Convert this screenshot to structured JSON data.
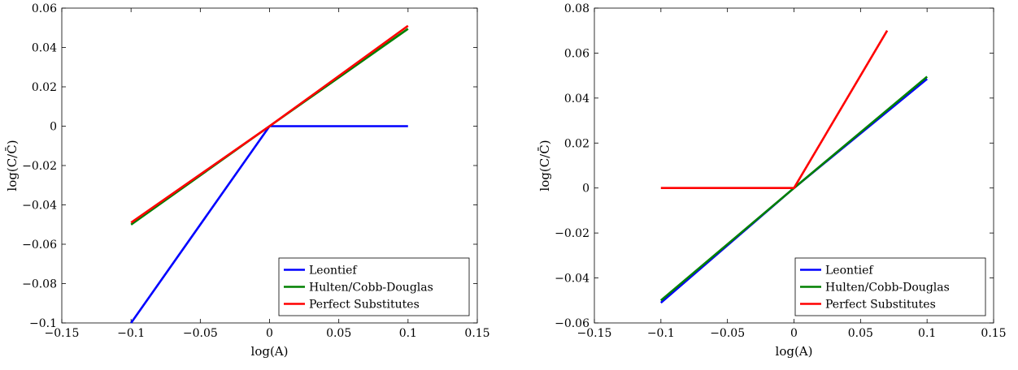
{
  "chart_data": [
    {
      "type": "line",
      "xlabel": "log(A)",
      "ylabel": "log(C/C̄)",
      "xlim": [
        -0.15,
        0.15
      ],
      "ylim": [
        -0.1,
        0.06
      ],
      "xticks": [
        "−0.15",
        "−0.1",
        "−0.05",
        "0",
        "0.05",
        "0.1",
        "0.15"
      ],
      "xtick_values": [
        -0.15,
        -0.1,
        -0.05,
        0,
        0.05,
        0.1,
        0.15
      ],
      "yticks": [
        "−0.1",
        "−0.08",
        "−0.06",
        "−0.04",
        "−0.02",
        "0",
        "0.02",
        "0.04",
        "0.06"
      ],
      "ytick_values": [
        -0.1,
        -0.08,
        -0.06,
        -0.04,
        -0.02,
        0,
        0.02,
        0.04,
        0.06
      ],
      "grid": false,
      "legend_position": "bottom-right",
      "series": [
        {
          "name": "Leontief",
          "color": "#0000ff",
          "x": [
            -0.1,
            0,
            0.1
          ],
          "y": [
            -0.1,
            0,
            0
          ]
        },
        {
          "name": "Hulten/Cobb-Douglas",
          "color": "#008000",
          "x": [
            -0.1,
            0,
            0.1
          ],
          "y": [
            -0.05,
            0,
            0.0495
          ]
        },
        {
          "name": "Perfect Substitutes",
          "color": "#ff0000",
          "x": [
            -0.1,
            0,
            0.1
          ],
          "y": [
            -0.049,
            0,
            0.051
          ]
        }
      ]
    },
    {
      "type": "line",
      "xlabel": "log(A)",
      "ylabel": "log(C/C̄)",
      "xlim": [
        -0.15,
        0.15
      ],
      "ylim": [
        -0.06,
        0.08
      ],
      "xticks": [
        "−0.15",
        "−0.1",
        "−0.05",
        "0",
        "0.05",
        "0.1",
        "0.15"
      ],
      "xtick_values": [
        -0.15,
        -0.1,
        -0.05,
        0,
        0.05,
        0.1,
        0.15
      ],
      "yticks": [
        "−0.06",
        "−0.04",
        "−0.02",
        "0",
        "0.02",
        "0.04",
        "0.06",
        "0.08"
      ],
      "ytick_values": [
        -0.06,
        -0.04,
        -0.02,
        0,
        0.02,
        0.04,
        0.06,
        0.08
      ],
      "grid": false,
      "legend_position": "bottom-right",
      "series": [
        {
          "name": "Leontief",
          "color": "#0000ff",
          "x": [
            -0.1,
            0,
            0.1
          ],
          "y": [
            -0.051,
            0,
            0.0485
          ]
        },
        {
          "name": "Hulten/Cobb-Douglas",
          "color": "#008000",
          "x": [
            -0.1,
            0,
            0.1
          ],
          "y": [
            -0.05,
            0,
            0.0495
          ]
        },
        {
          "name": "Perfect Substitutes",
          "color": "#ff0000",
          "x": [
            -0.1,
            0,
            0.07
          ],
          "y": [
            0,
            0,
            0.07
          ]
        }
      ]
    }
  ]
}
